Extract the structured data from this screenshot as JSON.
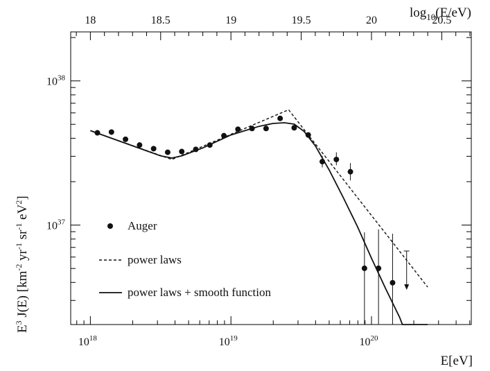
{
  "chart_data": {
    "type": "scatter",
    "xlabel": "E[eV]",
    "x2label": "log10(E/eV)",
    "x2label_main": "log",
    "x2label_sub": "10",
    "x2label_tail": "(E/eV)",
    "ylabel": "E 3 J(E) [km-2 yr-1 sr-1 eV 2]",
    "ylabel_parts": {
      "a": "E",
      "a_sup": "3",
      "b": " J(E) [km",
      "b_sup": "-2",
      "c": " yr",
      "c_sup": "-1",
      "d": " sr",
      "d_sup": "-1",
      "e": " eV",
      "e_sup": "2",
      "f": "]"
    },
    "x_scale": "log",
    "y_scale": "log",
    "xlim_log10": [
      17.86,
      20.71
    ],
    "ylim_log10": [
      36.31,
      38.34
    ],
    "x_ticks": [
      {
        "base": "10",
        "exp": "18",
        "log10": 18
      },
      {
        "base": "10",
        "exp": "19",
        "log10": 19
      },
      {
        "base": "10",
        "exp": "20",
        "log10": 20
      }
    ],
    "x2_ticks": [
      "18",
      "18.5",
      "19",
      "19.5",
      "20",
      "20.5"
    ],
    "x2_tick_values": [
      18,
      18.5,
      19,
      19.5,
      20,
      20.5
    ],
    "y_ticks": [
      {
        "base": "10",
        "exp": "37",
        "log10": 37
      },
      {
        "base": "10",
        "exp": "38",
        "log10": 38
      }
    ],
    "series": [
      {
        "name": "Auger",
        "style": "points",
        "color": "#111111",
        "points": [
          {
            "x": 18.05,
            "y": 37.64
          },
          {
            "x": 18.15,
            "y": 37.645
          },
          {
            "x": 18.25,
            "y": 37.595
          },
          {
            "x": 18.35,
            "y": 37.555
          },
          {
            "x": 18.45,
            "y": 37.53
          },
          {
            "x": 18.55,
            "y": 37.505
          },
          {
            "x": 18.65,
            "y": 37.51
          },
          {
            "x": 18.75,
            "y": 37.525
          },
          {
            "x": 18.85,
            "y": 37.555
          },
          {
            "x": 18.95,
            "y": 37.62
          },
          {
            "x": 19.05,
            "y": 37.665
          },
          {
            "x": 19.15,
            "y": 37.67
          },
          {
            "x": 19.25,
            "y": 37.67
          },
          {
            "x": 19.35,
            "y": 37.74
          },
          {
            "x": 19.45,
            "y": 37.675
          },
          {
            "x": 19.55,
            "y": 37.625
          },
          {
            "x": 19.65,
            "y": 37.44,
            "err_lo": 0.04,
            "err_hi": 0.04
          },
          {
            "x": 19.75,
            "y": 37.455,
            "err_lo": 0.04,
            "err_hi": 0.05
          },
          {
            "x": 19.85,
            "y": 37.37,
            "err_lo": 0.06,
            "err_hi": 0.06
          },
          {
            "x": 19.95,
            "y": 36.7,
            "err_lo": 0.39,
            "err_hi": 0.25
          },
          {
            "x": 20.05,
            "y": 36.7,
            "err_lo": 0.39,
            "err_hi": 0.27
          },
          {
            "x": 20.15,
            "y": 36.6,
            "err_lo": 0.29,
            "err_hi": 0.34
          },
          {
            "x": 20.25,
            "y": 36.82,
            "upper_limit": true
          }
        ]
      },
      {
        "name": "power laws",
        "style": "dashed",
        "color": "#111111",
        "points": [
          {
            "x": 18.0,
            "y": 37.655
          },
          {
            "x": 18.58,
            "y": 37.455
          },
          {
            "x": 19.41,
            "y": 37.8
          },
          {
            "x": 20.4,
            "y": 36.57
          }
        ]
      },
      {
        "name": "power laws + smooth function",
        "style": "solid",
        "color": "#111111",
        "points": [
          {
            "x": 18.0,
            "y": 37.655
          },
          {
            "x": 18.2,
            "y": 37.585
          },
          {
            "x": 18.4,
            "y": 37.515
          },
          {
            "x": 18.5,
            "y": 37.48
          },
          {
            "x": 18.58,
            "y": 37.465
          },
          {
            "x": 18.65,
            "y": 37.48
          },
          {
            "x": 18.8,
            "y": 37.535
          },
          {
            "x": 19.0,
            "y": 37.625
          },
          {
            "x": 19.2,
            "y": 37.685
          },
          {
            "x": 19.3,
            "y": 37.705
          },
          {
            "x": 19.38,
            "y": 37.71
          },
          {
            "x": 19.45,
            "y": 37.7
          },
          {
            "x": 19.52,
            "y": 37.65
          },
          {
            "x": 19.6,
            "y": 37.55
          },
          {
            "x": 19.7,
            "y": 37.38
          },
          {
            "x": 19.8,
            "y": 37.19
          },
          {
            "x": 19.9,
            "y": 36.99
          },
          {
            "x": 20.0,
            "y": 36.77
          },
          {
            "x": 20.1,
            "y": 36.56
          },
          {
            "x": 20.2,
            "y": 36.36
          },
          {
            "x": 20.22,
            "y": 36.31
          },
          {
            "x": 20.4,
            "y": 36.31
          }
        ]
      }
    ],
    "legend": {
      "placement": "lower-left",
      "entries": [
        {
          "label": "Auger",
          "marker": "dot"
        },
        {
          "label": "power laws",
          "marker": "dashed"
        },
        {
          "label": "power laws + smooth function",
          "marker": "solid"
        }
      ]
    }
  }
}
